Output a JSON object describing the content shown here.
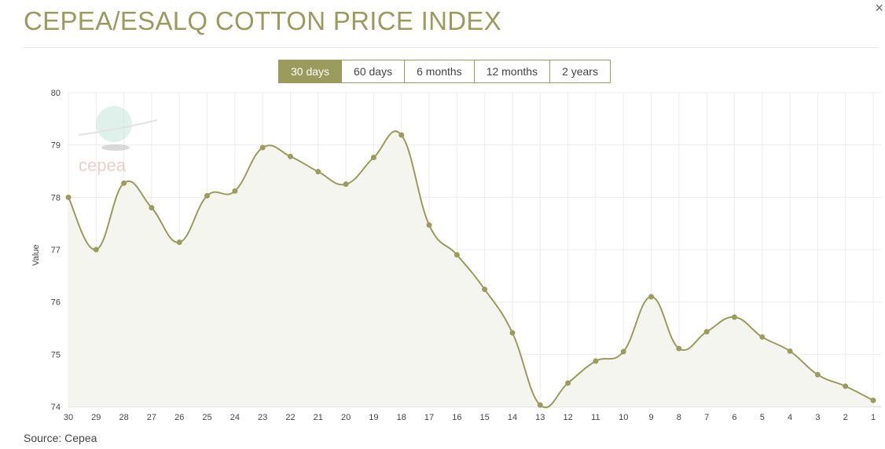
{
  "title": "CEPEA/ESALQ COTTON PRICE INDEX",
  "close_icon": "×",
  "tabs": [
    {
      "label": "30 days",
      "active": true
    },
    {
      "label": "60 days",
      "active": false
    },
    {
      "label": "6 months",
      "active": false
    },
    {
      "label": "12 months",
      "active": false
    },
    {
      "label": "2 years",
      "active": false
    }
  ],
  "source": "Source: Cepea",
  "logo_text": "cepea",
  "colors": {
    "accent": "#9b9b5e",
    "fill": "#f5f5f0"
  },
  "chart_data": {
    "type": "line",
    "title": "",
    "xlabel": "",
    "ylabel": "Value",
    "ylim": [
      74,
      80
    ],
    "yticks": [
      74,
      75,
      76,
      77,
      78,
      79,
      80
    ],
    "grid": true,
    "categories": [
      "30",
      "29",
      "28",
      "27",
      "26",
      "25",
      "24",
      "23",
      "22",
      "21",
      "20",
      "19",
      "18",
      "17",
      "16",
      "15",
      "14",
      "13",
      "12",
      "11",
      "10",
      "9",
      "8",
      "7",
      "6",
      "5",
      "4",
      "3",
      "2",
      "1"
    ],
    "values": [
      78.0,
      77.0,
      78.27,
      77.8,
      77.14,
      78.03,
      78.12,
      78.95,
      78.78,
      78.49,
      78.25,
      78.76,
      79.19,
      77.47,
      76.9,
      76.24,
      75.41,
      74.03,
      74.45,
      74.87,
      75.05,
      76.1,
      75.11,
      75.43,
      75.71,
      75.33,
      75.06,
      74.61,
      74.39,
      74.12
    ]
  }
}
